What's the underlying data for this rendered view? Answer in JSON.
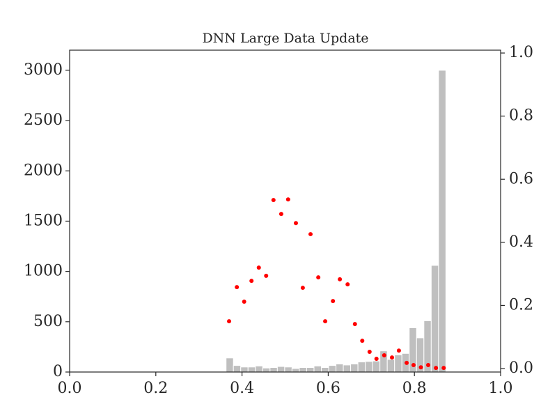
{
  "chart_data": {
    "type": "histogram",
    "title": "DNN Large Data Update",
    "bins": [
      0.363,
      0.38,
      0.397,
      0.414,
      0.431,
      0.448,
      0.465,
      0.482,
      0.499,
      0.516,
      0.533,
      0.55,
      0.567,
      0.584,
      0.601,
      0.618,
      0.635,
      0.652,
      0.669,
      0.686,
      0.703,
      0.72,
      0.737,
      0.754,
      0.771,
      0.788,
      0.805,
      0.822,
      0.839,
      0.856,
      0.873
    ],
    "counts": [
      140,
      65,
      50,
      50,
      60,
      40,
      45,
      55,
      50,
      35,
      45,
      45,
      60,
      45,
      65,
      80,
      70,
      80,
      100,
      105,
      110,
      210,
      125,
      170,
      185,
      440,
      340,
      510,
      1060,
      3000
    ],
    "color": "#bfbfbf",
    "overlay": {
      "type": "scatter",
      "axis": "y2",
      "color": "#ff0000",
      "x": [
        0.37,
        0.388,
        0.405,
        0.422,
        0.439,
        0.456,
        0.473,
        0.491,
        0.507,
        0.525,
        0.541,
        0.559,
        0.577,
        0.593,
        0.611,
        0.627,
        0.645,
        0.662,
        0.679,
        0.696,
        0.712,
        0.73,
        0.748,
        0.764,
        0.782,
        0.798,
        0.815,
        0.832,
        0.85,
        0.868
      ],
      "values": [
        0.15,
        0.258,
        0.212,
        0.278,
        0.32,
        0.294,
        0.534,
        0.49,
        0.536,
        0.461,
        0.256,
        0.426,
        0.289,
        0.15,
        0.214,
        0.283,
        0.267,
        0.141,
        0.088,
        0.053,
        0.031,
        0.042,
        0.035,
        0.057,
        0.018,
        0.011,
        0.004,
        0.011,
        0.002,
        0.002
      ]
    },
    "xlim": [
      0,
      1
    ],
    "xticks": [
      {
        "value": 0,
        "label": "0.0"
      },
      {
        "value": 0.2,
        "label": "0.2"
      },
      {
        "value": 0.4,
        "label": "0.4"
      },
      {
        "value": 0.6,
        "label": "0.6"
      },
      {
        "value": 0.8,
        "label": "0.8"
      },
      {
        "value": 1,
        "label": "1.0"
      }
    ],
    "ylim": [
      0,
      3200
    ],
    "yticks": [
      0,
      500,
      1000,
      1500,
      2000,
      2500,
      3000
    ],
    "y2lim": [
      -0.011,
      1.009
    ],
    "y2ticks": [
      {
        "value": 0,
        "label": "0.0"
      },
      {
        "value": 0.2,
        "label": "0.2"
      },
      {
        "value": 0.4,
        "label": "0.4"
      },
      {
        "value": 0.6,
        "label": "0.6"
      },
      {
        "value": 0.8,
        "label": "0.8"
      },
      {
        "value": 1,
        "label": "1.0"
      }
    ]
  }
}
